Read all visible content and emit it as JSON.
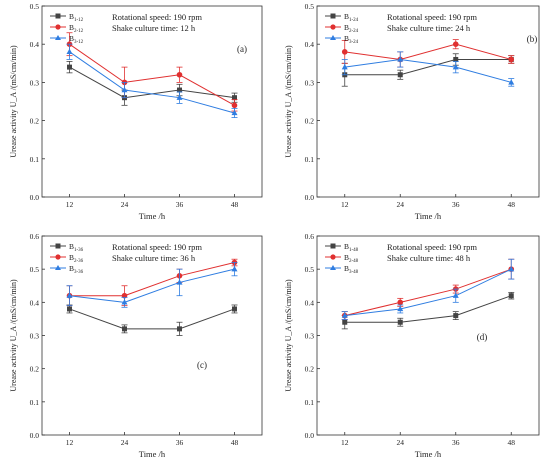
{
  "chart_data": [
    {
      "type": "line",
      "panel_label": "(a)",
      "annotation_lines": [
        "Rotational speed: 190 rpm",
        "Shake culture time: 12 h"
      ],
      "xlabel": "Time /h",
      "ylabel": "Urease activity U_A /(mS/cm/min)",
      "x": [
        12,
        24,
        36,
        48
      ],
      "xlim": [
        6,
        54
      ],
      "ylim": [
        0.0,
        0.5
      ],
      "yticks": [
        0.0,
        0.1,
        0.2,
        0.3,
        0.4,
        0.5
      ],
      "legend_position": "top-left",
      "series": [
        {
          "name": "B",
          "sub": "1-12",
          "color": "#444444",
          "marker": "square",
          "values": [
            0.34,
            0.26,
            0.28,
            0.26
          ],
          "errors": [
            0.015,
            0.02,
            0.015,
            0.012
          ]
        },
        {
          "name": "B",
          "sub": "2-12",
          "color": "#e03030",
          "marker": "circle",
          "values": [
            0.4,
            0.3,
            0.32,
            0.24
          ],
          "errors": [
            0.03,
            0.04,
            0.02,
            0.015
          ]
        },
        {
          "name": "B",
          "sub": "3-12",
          "color": "#2f7de1",
          "marker": "triangle",
          "values": [
            0.38,
            0.28,
            0.26,
            0.22
          ],
          "errors": [
            0.02,
            0.02,
            0.015,
            0.012
          ]
        }
      ]
    },
    {
      "type": "line",
      "panel_label": "(b)",
      "annotation_lines": [
        "Rotational speed: 190 rpm",
        "Shake culture time: 24 h"
      ],
      "xlabel": "Time /h",
      "ylabel": "Urease activity U_A /(mS/cm/min)",
      "x": [
        12,
        24,
        36,
        48
      ],
      "xlim": [
        6,
        54
      ],
      "ylim": [
        0.0,
        0.5
      ],
      "yticks": [
        0.0,
        0.1,
        0.2,
        0.3,
        0.4,
        0.5
      ],
      "legend_position": "top-left",
      "series": [
        {
          "name": "B",
          "sub": "1-24",
          "color": "#444444",
          "marker": "square",
          "values": [
            0.32,
            0.32,
            0.36,
            0.36
          ],
          "errors": [
            0.03,
            0.012,
            0.015,
            0.01
          ]
        },
        {
          "name": "B",
          "sub": "2-24",
          "color": "#e03030",
          "marker": "circle",
          "values": [
            0.38,
            0.36,
            0.4,
            0.36
          ],
          "errors": [
            0.03,
            0.02,
            0.012,
            0.01
          ]
        },
        {
          "name": "B",
          "sub": "3-24",
          "color": "#2f7de1",
          "marker": "triangle",
          "values": [
            0.34,
            0.36,
            0.34,
            0.3
          ],
          "errors": [
            0.02,
            0.02,
            0.015,
            0.01
          ]
        }
      ]
    },
    {
      "type": "line",
      "panel_label": "(c)",
      "annotation_lines": [
        "Rotational speed: 190 rpm",
        "Shake culture time: 36 h"
      ],
      "xlabel": "Time /h",
      "ylabel": "Urease activity U_A /(mS/cm/min)",
      "x": [
        12,
        24,
        36,
        48
      ],
      "xlim": [
        6,
        54
      ],
      "ylim": [
        0.0,
        0.6
      ],
      "yticks": [
        0.0,
        0.1,
        0.2,
        0.3,
        0.4,
        0.5,
        0.6
      ],
      "legend_position": "top-left",
      "series": [
        {
          "name": "B",
          "sub": "1-36",
          "color": "#444444",
          "marker": "square",
          "values": [
            0.38,
            0.32,
            0.32,
            0.38
          ],
          "errors": [
            0.012,
            0.012,
            0.02,
            0.012
          ]
        },
        {
          "name": "B",
          "sub": "2-36",
          "color": "#e03030",
          "marker": "circle",
          "values": [
            0.42,
            0.42,
            0.48,
            0.52
          ],
          "errors": [
            0.03,
            0.03,
            0.02,
            0.01
          ]
        },
        {
          "name": "B",
          "sub": "3-36",
          "color": "#2f7de1",
          "marker": "triangle",
          "values": [
            0.42,
            0.4,
            0.46,
            0.5
          ],
          "errors": [
            0.03,
            0.015,
            0.04,
            0.02
          ]
        }
      ]
    },
    {
      "type": "line",
      "panel_label": "(d)",
      "annotation_lines": [
        "Rotational speed: 190 rpm",
        "Shake culture time: 48 h"
      ],
      "xlabel": "Time /h",
      "ylabel": "Urease activity U_A /(mS/cm/min)",
      "x": [
        12,
        24,
        36,
        48
      ],
      "xlim": [
        6,
        54
      ],
      "ylim": [
        0.0,
        0.6
      ],
      "yticks": [
        0.0,
        0.1,
        0.2,
        0.3,
        0.4,
        0.5,
        0.6
      ],
      "legend_position": "top-left",
      "series": [
        {
          "name": "B",
          "sub": "1-48",
          "color": "#444444",
          "marker": "square",
          "values": [
            0.34,
            0.34,
            0.36,
            0.42
          ],
          "errors": [
            0.02,
            0.012,
            0.012,
            0.01
          ]
        },
        {
          "name": "B",
          "sub": "2-48",
          "color": "#e03030",
          "marker": "circle",
          "values": [
            0.36,
            0.4,
            0.44,
            0.5
          ],
          "errors": [
            0.012,
            0.012,
            0.012,
            0.03
          ]
        },
        {
          "name": "B",
          "sub": "3-48",
          "color": "#2f7de1",
          "marker": "triangle",
          "values": [
            0.36,
            0.38,
            0.42,
            0.5
          ],
          "errors": [
            0.012,
            0.012,
            0.02,
            0.03
          ]
        }
      ]
    }
  ]
}
